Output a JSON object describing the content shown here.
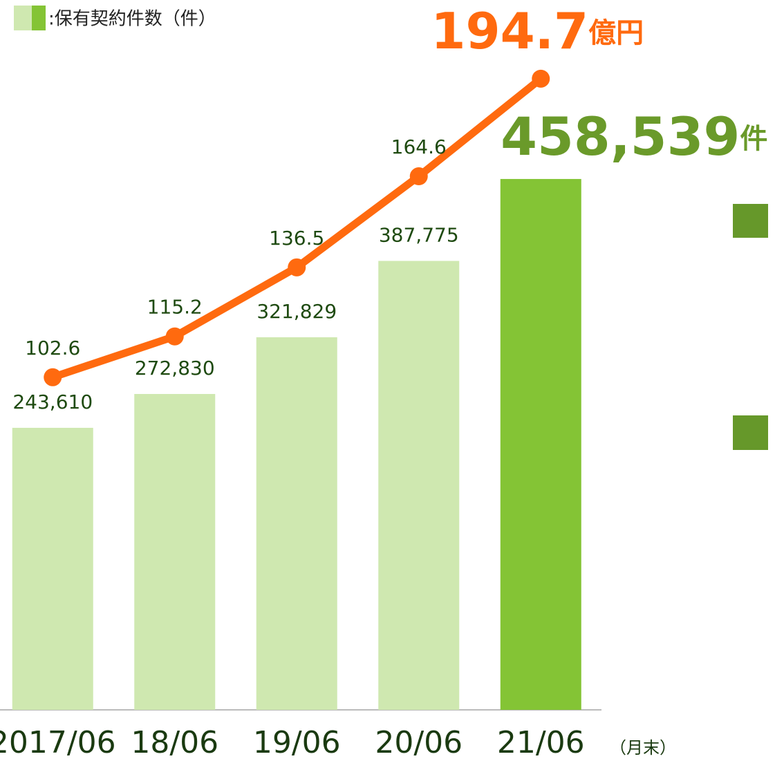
{
  "chart_data": {
    "type": "bar_line",
    "categories": [
      "2017/06",
      "18/06",
      "19/06",
      "20/06",
      "21/06"
    ],
    "x_suffix": "（月末）",
    "series": [
      {
        "name": ":保有契約件数（件）",
        "type": "bar",
        "colors": [
          "#cfe8b0",
          "#cfe8b0",
          "#cfe8b0",
          "#cfe8b0",
          "#84c435"
        ],
        "values": [
          243610,
          272830,
          321829,
          387775,
          458539
        ],
        "value_labels": [
          "243,610",
          "272,830",
          "321,829",
          "387,775",
          "458,539"
        ],
        "unit": "件",
        "label_color": "#6a9a2a"
      },
      {
        "type": "line",
        "axis": "y2",
        "color": "#ff6a0f",
        "values": [
          102.6,
          115.2,
          136.5,
          164.6,
          194.7
        ],
        "unit": "億円"
      }
    ],
    "ylim": [
      0,
      560000
    ],
    "y2lim": [
      0,
      200
    ]
  }
}
